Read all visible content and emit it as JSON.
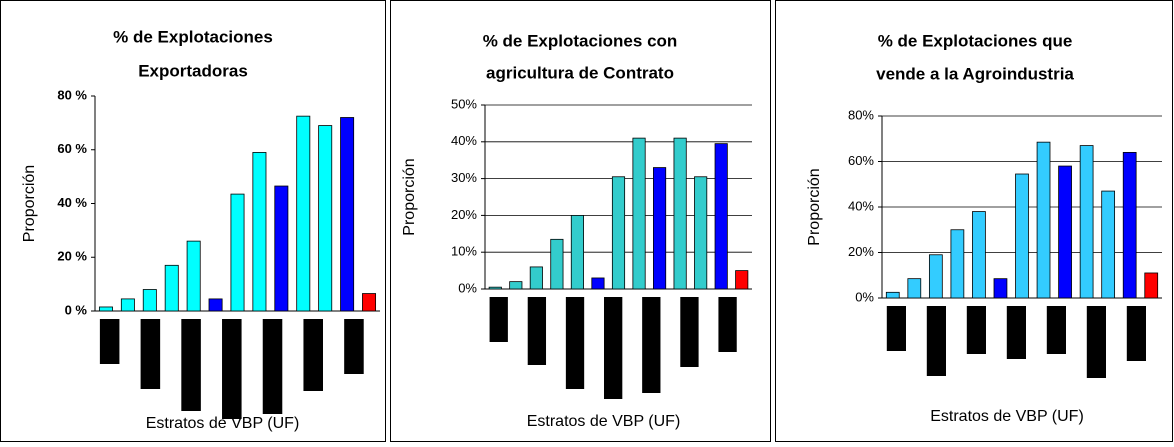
{
  "chart_data": [
    {
      "type": "bar",
      "title": [
        "% de Explotaciones",
        "Exportadoras"
      ],
      "ylabel": "Proporción",
      "xlabel": "Estratos de VBP (UF)",
      "categories": [
        null,
        null,
        null,
        null,
        null,
        null,
        null,
        null,
        null,
        null,
        null,
        null,
        null
      ],
      "values": [
        1.5,
        4.5,
        8,
        17,
        26,
        4.5,
        43.5,
        59,
        46.5,
        72.5,
        69,
        72,
        6.5
      ],
      "colors": [
        "#00ffff",
        "#00ffff",
        "#00ffff",
        "#00ffff",
        "#00ffff",
        "#0000ff",
        "#00ffff",
        "#00ffff",
        "#0000ff",
        "#00ffff",
        "#00ffff",
        "#0000ff",
        "#ff0000"
      ],
      "ylim": [
        0,
        80
      ],
      "yticks": [
        {
          "value": 0,
          "label": "0 %"
        },
        {
          "value": 20,
          "label": "20 %"
        },
        {
          "value": 40,
          "label": "40 %"
        },
        {
          "value": 60,
          "label": "60 %"
        },
        {
          "value": 80,
          "label": "80 %"
        }
      ],
      "grid": false
    },
    {
      "type": "bar",
      "title": [
        "% de Explotaciones con",
        "agricultura de Contrato"
      ],
      "ylabel": "Proporción",
      "xlabel": "Estratos de VBP (UF)",
      "categories": [
        null,
        null,
        null,
        null,
        null,
        null,
        null,
        null,
        null,
        null,
        null,
        null,
        null
      ],
      "values": [
        0.5,
        2,
        6,
        13.5,
        20,
        3,
        30.5,
        41,
        33,
        41,
        30.5,
        39.5,
        5
      ],
      "colors": [
        "#33cccc",
        "#33cccc",
        "#33cccc",
        "#33cccc",
        "#33cccc",
        "#0000ff",
        "#33cccc",
        "#33cccc",
        "#0000ff",
        "#33cccc",
        "#33cccc",
        "#0000ff",
        "#ff0000"
      ],
      "ylim": [
        0,
        50
      ],
      "yticks": [
        {
          "value": 0,
          "label": "0%"
        },
        {
          "value": 10,
          "label": "10%"
        },
        {
          "value": 20,
          "label": "20%"
        },
        {
          "value": 30,
          "label": "30%"
        },
        {
          "value": 40,
          "label": "40%"
        },
        {
          "value": 50,
          "label": "50%"
        }
      ],
      "grid": true
    },
    {
      "type": "bar",
      "title": [
        "% de Explotaciones que",
        "vende a la Agroindustria"
      ],
      "ylabel": "Proporción",
      "xlabel": "Estratos de VBP (UF)",
      "categories": [
        null,
        null,
        null,
        null,
        null,
        null,
        null,
        null,
        null,
        null,
        null,
        null,
        null
      ],
      "values": [
        2.5,
        8.5,
        19,
        30,
        38,
        8.5,
        54.5,
        68.5,
        58,
        67,
        47,
        64,
        11
      ],
      "colors": [
        "#33ccff",
        "#33ccff",
        "#33ccff",
        "#33ccff",
        "#33ccff",
        "#0000ff",
        "#33ccff",
        "#33ccff",
        "#0000ff",
        "#33ccff",
        "#33ccff",
        "#0000ff",
        "#ff0000"
      ],
      "ylim": [
        0,
        80
      ],
      "yticks": [
        {
          "value": 0,
          "label": "0%"
        },
        {
          "value": 20,
          "label": "20%"
        },
        {
          "value": 40,
          "label": "40%"
        },
        {
          "value": 60,
          "label": "60%"
        },
        {
          "value": 80,
          "label": "80%"
        }
      ],
      "grid": true
    }
  ]
}
